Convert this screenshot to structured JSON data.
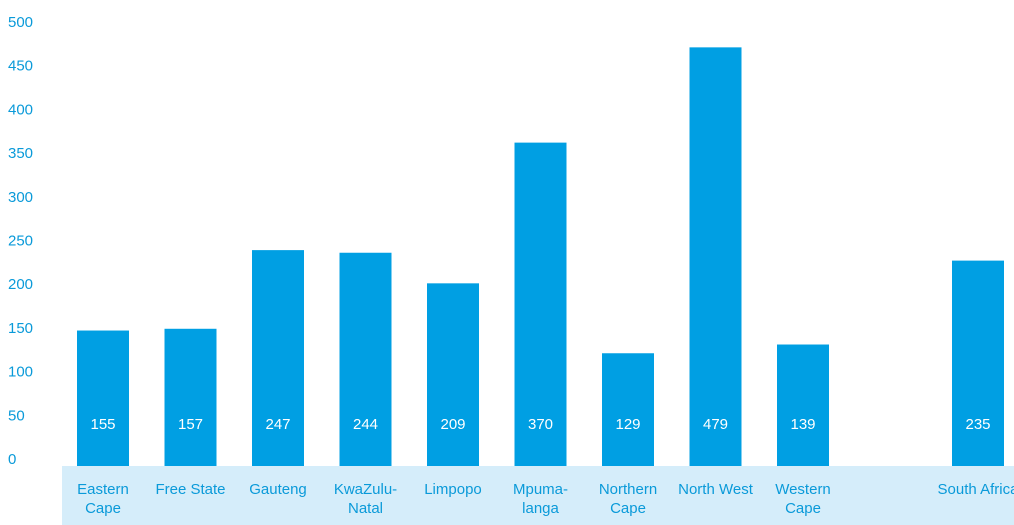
{
  "chart_data": {
    "type": "bar",
    "categories": [
      "Eastern Cape",
      "Free State",
      "Gauteng",
      "KwaZulu-Natal",
      "Limpopo",
      "Mpuma-langa",
      "Northern Cape",
      "North West",
      "Western Cape",
      null,
      "South Africa"
    ],
    "values": [
      155,
      157,
      247,
      244,
      209,
      370,
      129,
      479,
      139,
      null,
      235
    ],
    "color": "#009fe3",
    "ylim": [
      0,
      500
    ],
    "yticks": [
      0,
      50,
      100,
      150,
      200,
      250,
      300,
      350,
      400,
      450,
      500
    ],
    "grid": false
  }
}
